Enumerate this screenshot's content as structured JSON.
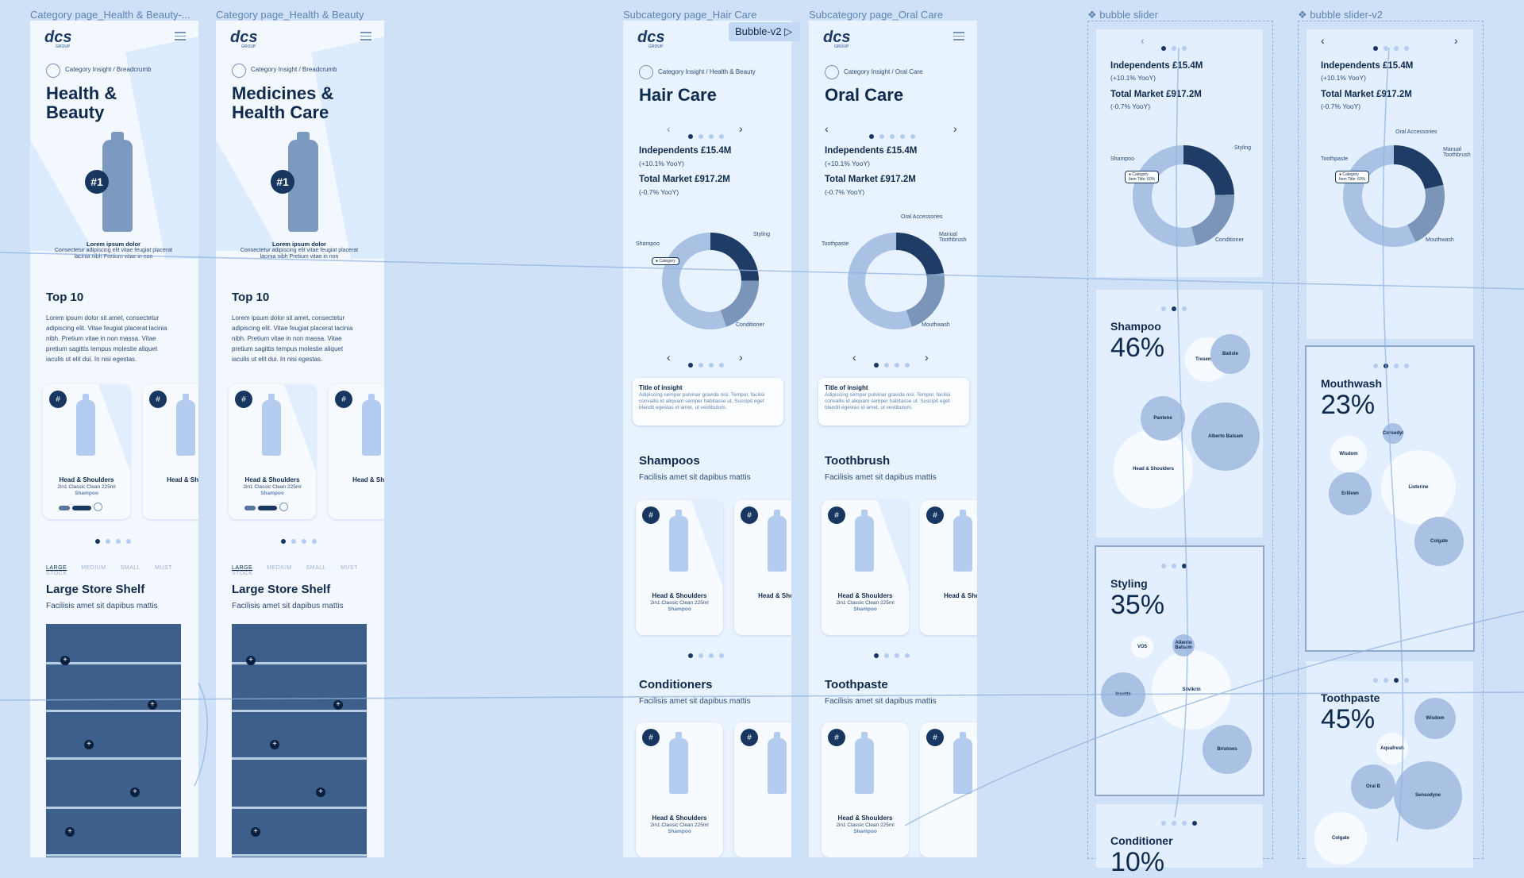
{
  "frames": [
    {
      "label": "Category page_Health & Beauty-...",
      "logo": "dcs",
      "breadcrumb": "Category Insight / Breadcrumb",
      "title": "Health & Beauty",
      "rank": "#1",
      "hero_caption_title": "Lorem ipsum dolor",
      "hero_caption": "Consectetur adipiscing elit vitae feugiat placerat lacinia nibh Pretium vitae in non",
      "top10_title": "Top 10",
      "top10_text": "Lorem ipsum dolor sit amet, consectetur adipiscing elit. Vitae feugiat placerat lacinia nibh. Pretium vitae in non massa. Vitae pretium sagittis tempus molestie aliquet iaculis ut elit dui. In nisi egestas.",
      "tabs": [
        "LARGE",
        "MEDIUM",
        "SMALL",
        "MUST STOCK"
      ],
      "shelf_title": "Large Store Shelf",
      "shelf_sub": "Facilisis amet sit dapibus mattis"
    },
    {
      "label": "Category page_Health & Beauty",
      "logo": "dcs",
      "breadcrumb": "Category Insight / Breadcrumb",
      "title": "Medicines & Health Care",
      "rank": "#1",
      "hero_caption_title": "Lorem ipsum dolor",
      "hero_caption": "Consectetur adipiscing elit vitae feugiat placerat lacinia nibh Pretium vitae in non",
      "top10_title": "Top 10",
      "top10_text": "Lorem ipsum dolor sit amet, consectetur adipiscing elit. Vitae feugiat placerat lacinia nibh. Pretium vitae in non massa. Vitae pretium sagittis tempus molestie aliquet iaculis ut elit dui. In nisi egestas.",
      "tabs": [
        "LARGE",
        "MEDIUM",
        "SMALL",
        "MUST STOCK"
      ],
      "shelf_title": "Large Store Shelf",
      "shelf_sub": "Facilisis amet sit dapibus mattis"
    }
  ],
  "product_card": {
    "hash": "#",
    "title": "Head & Shoulders",
    "subtitle": "2in1 Classic Clean 225ml",
    "category": "Shampoo",
    "short_title": "Head & Shou"
  },
  "subframes": [
    {
      "label": "Subcategory page_Hair Care",
      "logo": "dcs",
      "breadcrumb": "Category Insight / Health & Beauty",
      "title": "Hair Care",
      "stat1": "Independents £15.4M",
      "stat1_sub": "(+10.1% YooY)",
      "stat2": "Total Market £917.2M",
      "stat2_sub": "(-0.7% YooY)",
      "donut_labels": [
        "Shampoo",
        "Styling",
        "Conditioner"
      ],
      "tag": "Category",
      "insight_title": "Title of insight",
      "insight_text": "Adipiscing semper pulvinar gravida nisl. Tempor, facilisi convallis id aliquam semper habitasse ut. Suscipit eget blandit egestas id amet, ut vestibulum.",
      "sec1_title": "Shampoos",
      "sec1_sub": "Facilisis amet sit dapibus mattis",
      "sec2_title": "Conditioners",
      "sec2_sub": "Facilisis amet sit dapibus mattis"
    },
    {
      "label": "Subcategory page_Oral Care",
      "logo": "dcs",
      "breadcrumb": "Category Insight / Oral Care",
      "title": "Oral Care",
      "stat1": "Independents £15.4M",
      "stat1_sub": "(+10.1% YooY)",
      "stat2": "Total Market £917.2M",
      "stat2_sub": "(-0.7% YooY)",
      "donut_labels": [
        "Toothpaste",
        "Oral Accessories",
        "Manual Toothbrush",
        "Mouthwash"
      ],
      "insight_title": "Title of insight",
      "insight_text": "Adipiscing semper pulvinar gravida nisl. Tempor, facilisi convallis id aliquam semper habitasse ut. Suscipit eget blandit egestas id amet, ut vestibulum.",
      "sec1_title": "Toothbrush",
      "sec1_sub": "Facilisis amet sit dapibus mattis",
      "sec2_title": "Toothpaste",
      "sec2_sub": "Facilisis amet sit dapibus mattis"
    }
  ],
  "flow_button": "Bubble-v2",
  "slider1": {
    "label": "❖ bubble slider",
    "stat1": "Independents £15.4M",
    "stat1_sub": "(+10.1% YooY)",
    "stat2": "Total Market £917.2M",
    "stat2_sub": "(-0.7% YooY)",
    "donut_labels": [
      "Shampoo",
      "Styling",
      "Conditioner"
    ],
    "tag1": "Category",
    "tag2": "Item Title: 60%",
    "panels": [
      {
        "name": "Shampoo",
        "pct": "46%",
        "bubbles": [
          "Batiste",
          "Tresemme",
          "Pantene",
          "Alberto Balsam",
          "Head & Shoulders"
        ]
      },
      {
        "name": "Styling",
        "pct": "35%",
        "bubbles": [
          "Alberto Balsam",
          "VO5",
          "Insette",
          "Silvikrin",
          "Bristows"
        ]
      },
      {
        "name": "Conditioner",
        "pct": "10%"
      }
    ]
  },
  "slider2": {
    "label": "❖ bubble slider-v2",
    "stat1": "Independents £15.4M",
    "stat1_sub": "(+10.1% YooY)",
    "stat2": "Total Market £917.2M",
    "stat2_sub": "(-0.7% YooY)",
    "donut_labels": [
      "Oral Accessories",
      "Manual Toothbrush",
      "Toothpaste",
      "Mouthwash"
    ],
    "tag1": "Category",
    "tag2": "Item Title: 60%",
    "panels": [
      {
        "name": "Mouthwash",
        "pct": "23%",
        "bubbles": [
          "Corsodyl",
          "Wisdom",
          "Listerine",
          "Eriliven",
          "Colgate"
        ]
      },
      {
        "name": "Toothpaste",
        "pct": "45%",
        "bubbles": [
          "Wisdom",
          "Aquafresh",
          "Oral B",
          "Sensodyne",
          "Colgate"
        ]
      }
    ]
  }
}
